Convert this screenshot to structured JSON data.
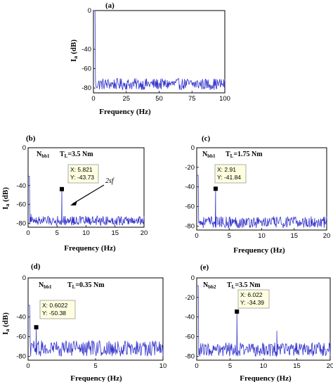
{
  "chart_data": [
    {
      "id": "a",
      "type": "line",
      "title": "(a)",
      "xlabel": "Frequency (Hz)",
      "ylabel": "I",
      "ylabel_sub": "a",
      "ylabel_unit": " (dB)",
      "xlim": [
        0,
        100
      ],
      "ylim": [
        -85,
        0
      ],
      "xticks": [
        "0",
        "25",
        "50",
        "75",
        "100"
      ],
      "yticks": [
        "0",
        "-40",
        "-60",
        "-80"
      ],
      "series": [
        {
          "color": "#3333cc",
          "x": [
            0,
            1,
            2,
            10,
            20,
            30,
            40,
            50,
            60,
            70,
            80,
            90,
            100
          ],
          "y": [
            0,
            -70,
            -76,
            -76,
            -77,
            -76,
            -77,
            -76,
            -77,
            -76,
            -77,
            -76,
            -76
          ]
        }
      ],
      "noise_band": [
        -82,
        -70
      ],
      "annotations": []
    },
    {
      "id": "b",
      "type": "line",
      "title": "(b)",
      "xlabel": "Frequency (Hz)",
      "ylabel": "I",
      "ylabel_sub": "a",
      "ylabel_unit": " (dB)",
      "xlim": [
        0,
        20
      ],
      "ylim": [
        -84,
        0
      ],
      "xticks": [
        "0",
        "5",
        "10",
        "15",
        "20"
      ],
      "yticks": [
        "0",
        "-40",
        "-60",
        "-80"
      ],
      "series": [
        {
          "color": "#3333cc",
          "x": [
            0,
            0.5,
            1,
            5.821,
            10,
            15,
            20
          ],
          "y": [
            -30,
            -70,
            -78,
            -43.73,
            -78,
            -78,
            -78
          ]
        }
      ],
      "noise_band": [
        -82,
        -72
      ],
      "annotations": [
        {
          "text": "N",
          "sub": "bb1"
        },
        {
          "text": "T",
          "sub": "L",
          "rest": "=3.5 Nm"
        },
        {
          "text": "2sf"
        },
        {
          "tip_x": "X: 5.821",
          "tip_y": "Y: -43.73"
        }
      ]
    },
    {
      "id": "c",
      "type": "line",
      "title": "(c)",
      "xlabel": "Frequency (Hz)",
      "ylabel": "",
      "xlim": [
        0,
        20
      ],
      "ylim": [
        -84,
        0
      ],
      "xticks": [
        "0",
        "5",
        "10",
        "15",
        "20"
      ],
      "yticks": [
        "0",
        "-20",
        "-40",
        "-60",
        "-80"
      ],
      "series": [
        {
          "color": "#3333cc",
          "x": [
            0,
            0.5,
            1,
            2.91,
            10,
            15,
            20
          ],
          "y": [
            -28,
            -70,
            -78,
            -41.84,
            -76,
            -76,
            -76
          ]
        }
      ],
      "noise_band": [
        -82,
        -70
      ],
      "annotations": [
        {
          "text": "N",
          "sub": "bb1"
        },
        {
          "text": "T",
          "sub": "L",
          "rest": "=1.75 Nm"
        },
        {
          "tip_x": "X: 2.91",
          "tip_y": "Y: -41.84"
        }
      ]
    },
    {
      "id": "d",
      "type": "line",
      "title": "(d)",
      "xlabel": "Frequency (Hz)",
      "ylabel": "I",
      "ylabel_sub": "a",
      "ylabel_unit": " (dB)",
      "xlim": [
        0,
        10
      ],
      "ylim": [
        -84,
        0
      ],
      "xticks": [
        "0",
        "5",
        "10"
      ],
      "yticks": [
        "0",
        "-40",
        "-60",
        "-80"
      ],
      "series": [
        {
          "color": "#3333cc",
          "x": [
            0,
            0.25,
            0.6022,
            5,
            10
          ],
          "y": [
            -28,
            -66,
            -50.38,
            -72,
            -72
          ]
        }
      ],
      "noise_band": [
        -80,
        -64
      ],
      "annotations": [
        {
          "text": "N",
          "sub": "bb1"
        },
        {
          "text": "T",
          "sub": "L",
          "rest": "=0.35 Nm"
        },
        {
          "tip_x": "X: 0.6022",
          "tip_y": "Y: -50.38"
        }
      ]
    },
    {
      "id": "e",
      "type": "line",
      "title": "(e)",
      "xlabel": "Frequency (Hz)",
      "ylabel": "",
      "xlim": [
        0,
        20
      ],
      "ylim": [
        -84,
        0
      ],
      "xticks": [
        "0",
        "5",
        "10",
        "15",
        "20"
      ],
      "yticks": [
        "0",
        "-20",
        "-40",
        "-60",
        "-80"
      ],
      "series": [
        {
          "color": "#3333cc",
          "x": [
            0,
            0.5,
            6.022,
            12,
            20
          ],
          "y": [
            -8,
            -68,
            -34.39,
            -54,
            -74
          ]
        }
      ],
      "noise_band": [
        -80,
        -66
      ],
      "annotations": [
        {
          "text": "N",
          "sub": "bb2"
        },
        {
          "text": "T",
          "sub": "L",
          "rest": "=3.5 Nm"
        },
        {
          "tip_x": "X: 6.022",
          "tip_y": "Y: -34.39"
        }
      ]
    }
  ]
}
